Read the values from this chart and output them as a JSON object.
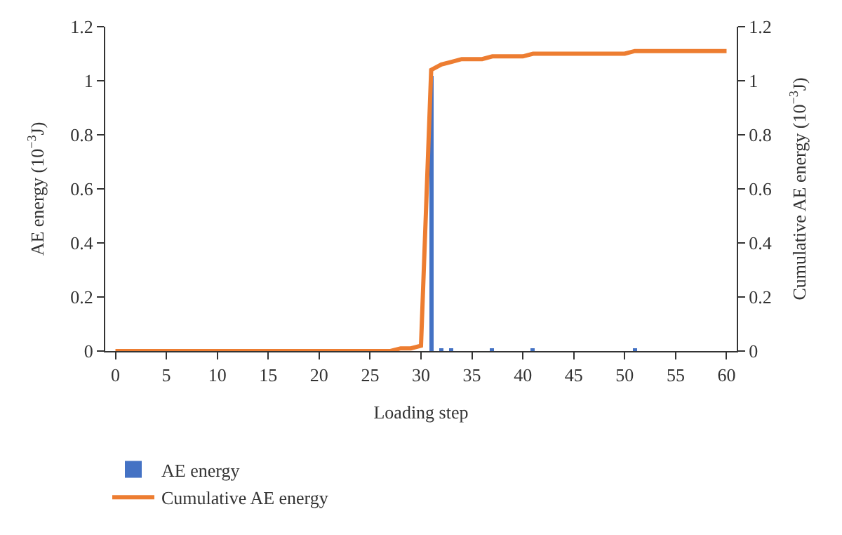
{
  "chart_data": {
    "type": "bar",
    "xlabel": "Loading step",
    "ylabel": "AE energy (10$^{−3}$J)",
    "y2label": "Cumulative AE energy (10$^{−3}$J)",
    "x": [
      0,
      1,
      2,
      3,
      4,
      5,
      6,
      7,
      8,
      9,
      10,
      11,
      12,
      13,
      14,
      15,
      16,
      17,
      18,
      19,
      20,
      21,
      22,
      23,
      24,
      25,
      26,
      27,
      28,
      29,
      30,
      31,
      32,
      33,
      34,
      35,
      36,
      37,
      38,
      39,
      40,
      41,
      42,
      43,
      44,
      45,
      46,
      47,
      48,
      49,
      50,
      51,
      52,
      53,
      54,
      55,
      56,
      57,
      58,
      59,
      60
    ],
    "series": [
      {
        "name": "AE energy",
        "color": "#4472c4",
        "values": [
          0,
          0,
          0,
          0,
          0,
          0,
          0,
          0,
          0,
          0,
          0,
          0,
          0,
          0,
          0,
          0,
          0,
          0,
          0,
          0,
          0,
          0,
          0,
          0,
          0,
          0,
          0,
          0,
          0,
          0,
          0,
          1.02,
          0.01,
          0.01,
          0,
          0,
          0,
          0.01,
          0,
          0,
          0,
          0.01,
          0,
          0,
          0,
          0,
          0,
          0,
          0,
          0,
          0,
          0.01,
          0,
          0,
          0,
          0,
          0,
          0,
          0,
          0,
          0
        ]
      },
      {
        "name": "Cumulative AE energy",
        "type": "line",
        "axis": "y2",
        "color": "#ed7d31",
        "values": [
          0,
          0,
          0,
          0,
          0,
          0,
          0,
          0,
          0,
          0,
          0,
          0,
          0,
          0,
          0,
          0,
          0,
          0,
          0,
          0,
          0,
          0,
          0,
          0,
          0,
          0,
          0,
          0,
          0.01,
          0.01,
          0.02,
          1.04,
          1.06,
          1.07,
          1.08,
          1.08,
          1.08,
          1.09,
          1.09,
          1.09,
          1.09,
          1.1,
          1.1,
          1.1,
          1.1,
          1.1,
          1.1,
          1.1,
          1.1,
          1.1,
          1.1,
          1.11,
          1.11,
          1.11,
          1.11,
          1.11,
          1.11,
          1.11,
          1.11,
          1.11,
          1.11
        ]
      }
    ],
    "xlim": [
      -1,
      61
    ],
    "xticks": [
      0,
      5,
      10,
      15,
      20,
      25,
      30,
      35,
      40,
      45,
      50,
      55,
      60
    ],
    "ylim": [
      0,
      1.2
    ],
    "yticks": [
      0,
      0.2,
      0.4,
      0.6,
      0.8,
      1,
      1.2
    ],
    "y2lim": [
      0,
      1.2
    ],
    "y2ticks": [
      0,
      0.2,
      0.4,
      0.6,
      0.8,
      1,
      1.2
    ],
    "legend": "bottom",
    "marker": "none",
    "line_style": "solid"
  }
}
